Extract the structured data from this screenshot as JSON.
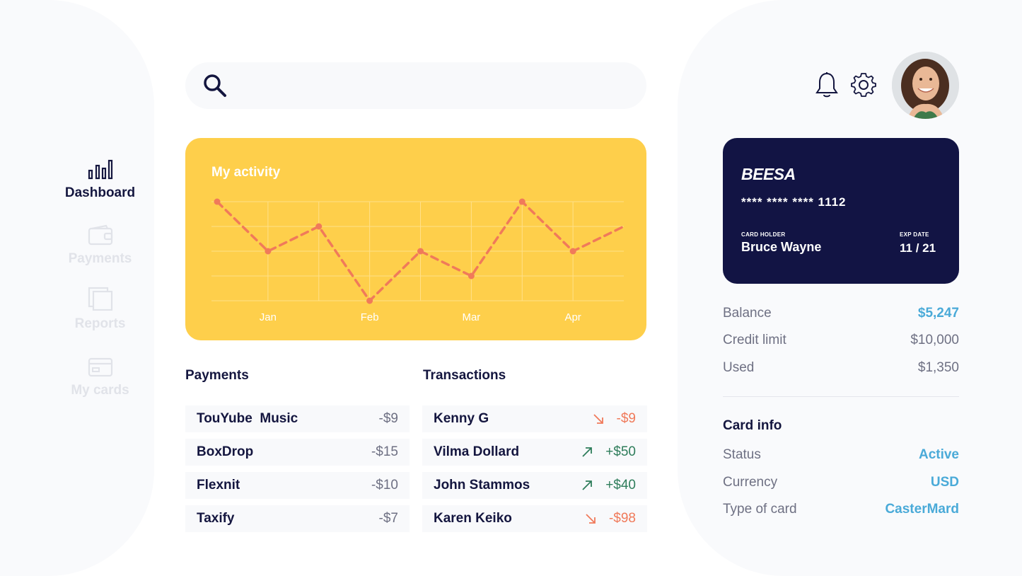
{
  "sidebar": {
    "items": [
      {
        "label": "Dashboard",
        "icon": "bar-chart-icon",
        "active": true
      },
      {
        "label": "Payments",
        "icon": "wallet-icon",
        "active": false
      },
      {
        "label": "Reports",
        "icon": "documents-icon",
        "active": false
      },
      {
        "label": "My cards",
        "icon": "credit-card-icon",
        "active": false
      }
    ]
  },
  "search": {
    "placeholder": "",
    "icon": "search-icon"
  },
  "header": {
    "icons": [
      "bell-icon",
      "gear-icon"
    ],
    "avatar": "avatar"
  },
  "activity": {
    "title": "My activity",
    "chart_data": {
      "type": "line",
      "x": [
        "",
        "Jan",
        "",
        "Feb",
        "",
        "Mar",
        "",
        "Apr",
        ""
      ],
      "values": [
        6,
        4,
        5,
        2,
        4,
        3,
        6,
        4,
        5
      ],
      "xlabels": [
        "Jan",
        "Feb",
        "Mar",
        "Apr"
      ],
      "ylim": [
        2,
        6
      ],
      "grid": true,
      "line_color": "#f07a5a",
      "style": "dashed"
    }
  },
  "payments": {
    "title": "Payments",
    "rows": [
      {
        "name": "TouYube  Music",
        "amount": "-$9"
      },
      {
        "name": "BoxDrop",
        "amount": "-$15"
      },
      {
        "name": "Flexnit",
        "amount": "-$10"
      },
      {
        "name": "Taxify",
        "amount": "-$7"
      }
    ]
  },
  "transactions": {
    "title": "Transactions",
    "rows": [
      {
        "name": "Kenny G",
        "amount": "-$9",
        "direction": "down",
        "color": "#f07a5a"
      },
      {
        "name": "Vilma Dollard",
        "amount": "+$50",
        "direction": "up",
        "color": "#2e7d5b"
      },
      {
        "name": "John Stammos",
        "amount": "+$40",
        "direction": "up",
        "color": "#2e7d5b"
      },
      {
        "name": "Karen Keiko",
        "amount": "-$98",
        "direction": "down",
        "color": "#f07a5a"
      }
    ]
  },
  "card": {
    "brand": "BEESA",
    "number": "****  **** ****  1112",
    "holder_label": "CARD HOLDER",
    "holder": "Bruce Wayne",
    "exp_label": "EXP DATE",
    "exp": "11 / 21"
  },
  "account": {
    "balance_label": "Balance",
    "balance": "$5,247",
    "credit_limit_label": "Credit limit",
    "credit_limit": "$10,000",
    "used_label": "Used",
    "used": "$1,350"
  },
  "card_info": {
    "title": "Card info",
    "status_label": "Status",
    "status": "Active",
    "currency_label": "Currency",
    "currency": "USD",
    "type_label": "Type of card",
    "type": "CasterMard"
  },
  "colors": {
    "accent": "#4aaad8",
    "navy": "#121444",
    "yellow": "#fecf4b",
    "negative": "#f07a5a",
    "positive": "#2e7d5b"
  }
}
